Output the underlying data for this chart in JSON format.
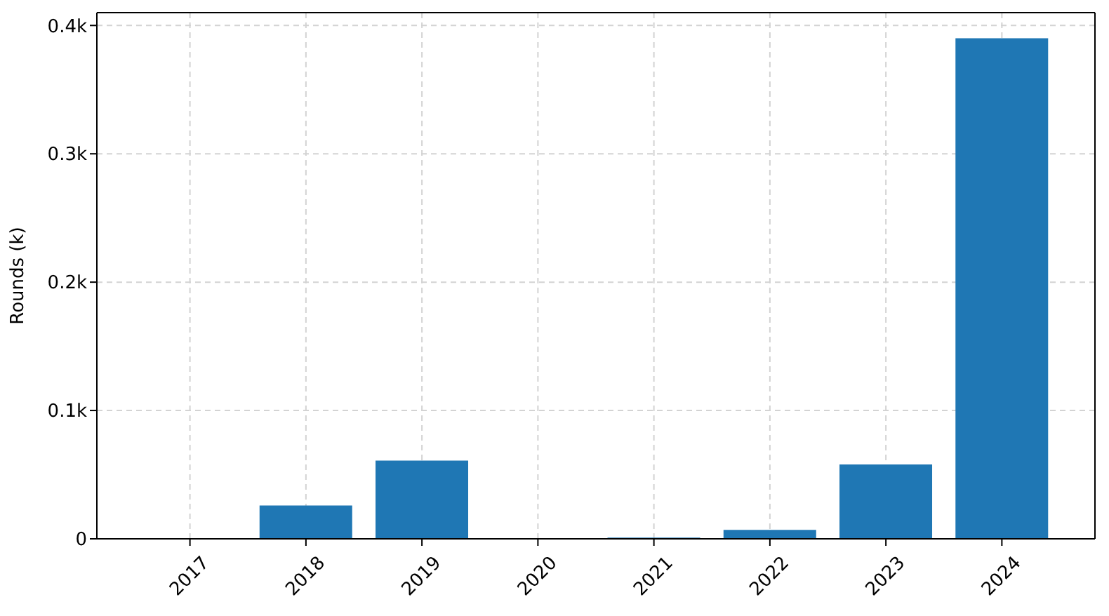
{
  "chart_data": {
    "type": "bar",
    "ylabel": "Rounds (k)",
    "categories": [
      "2017",
      "2018",
      "2019",
      "2020",
      "2021",
      "2022",
      "2023",
      "2024"
    ],
    "values": [
      0,
      0.026,
      0.061,
      0,
      0.001,
      0.007,
      0.058,
      0.39
    ],
    "color": "#1f77b4",
    "ylim": [
      0,
      0.41
    ],
    "yticks": [
      0,
      {
        "value": 0.1,
        "label": "0.1k"
      },
      {
        "value": 0.2,
        "label": "0.2k"
      },
      {
        "value": 0.3,
        "label": "0.3k"
      },
      {
        "value": 0.4,
        "label": "0.4k"
      }
    ],
    "grid": true
  }
}
